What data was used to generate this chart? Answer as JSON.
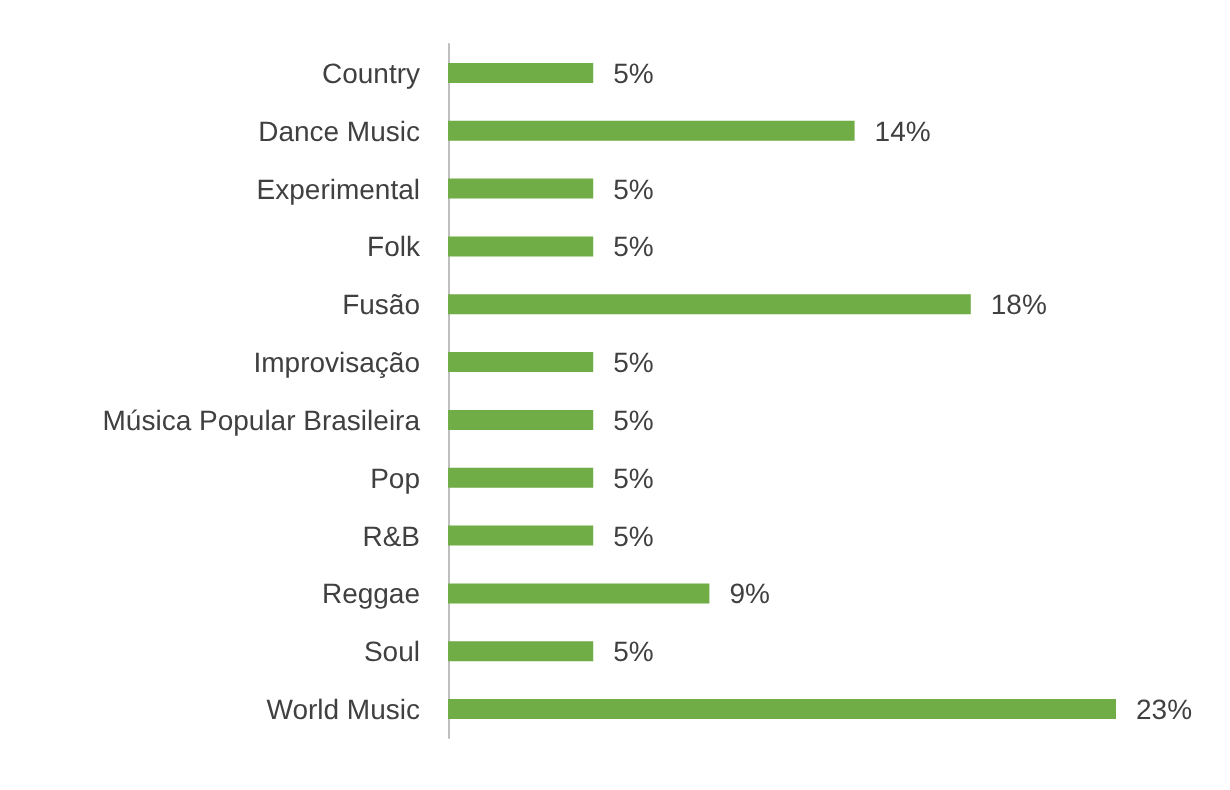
{
  "chart_data": {
    "type": "bar",
    "orientation": "horizontal",
    "categories": [
      "Country",
      "Dance Music",
      "Experimental",
      "Folk",
      "Fusão",
      "Improvisação",
      "Música Popular Brasileira",
      "Pop",
      "R&B",
      "Reggae",
      "Soul",
      "World Music"
    ],
    "values": [
      5,
      14,
      5,
      5,
      18,
      5,
      5,
      5,
      5,
      9,
      5,
      23
    ],
    "value_labels": [
      "5%",
      "14%",
      "5%",
      "5%",
      "18%",
      "5%",
      "5%",
      "5%",
      "5%",
      "9%",
      "5%",
      "23%"
    ],
    "color": "#70ad47",
    "tick_labels": "y",
    "grid": false
  }
}
